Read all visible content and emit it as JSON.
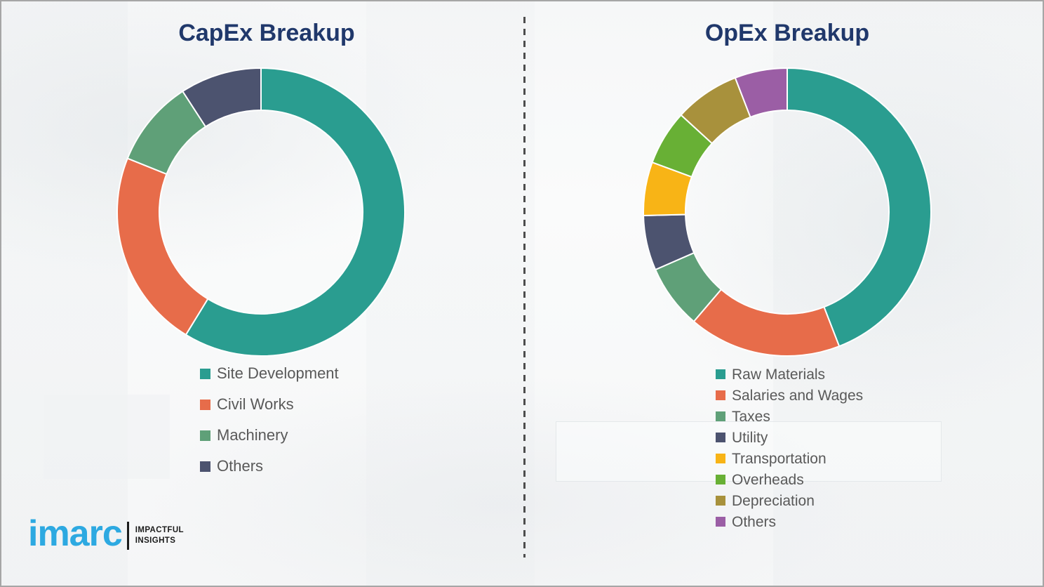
{
  "page": {
    "background_color": "#f7f8f9",
    "frame_border_color": "#a6a6a6",
    "divider_color": "#4d4d4d"
  },
  "charts_shared": {
    "title_color": "#20386b",
    "legend_text_color": "#595959",
    "segment_gap_color": "#ffffff",
    "donut_hole_ratio": 0.7
  },
  "chart_data": [
    {
      "type": "donut",
      "title": "CapEx Breakup",
      "categories": [
        "Site Development",
        "Civil Works",
        "Machinery",
        "Others"
      ],
      "values_percent": [
        59,
        22,
        10,
        9
      ],
      "arc_degrees": [
        211.5,
        80.4,
        35.1,
        33.0
      ],
      "colors": [
        "#2a9d90",
        "#e76c4a",
        "#5fa078",
        "#4c536f"
      ],
      "start_angle_deg": 0,
      "direction": "clockwise",
      "legend_position": "bottom-left",
      "data_labels": "none"
    },
    {
      "type": "donut",
      "title": "OpEx Breakup",
      "categories": [
        "Raw Materials",
        "Salaries and Wages",
        "Taxes",
        "Utility",
        "Transportation",
        "Overheads",
        "Depreciation",
        "Others"
      ],
      "values_percent": [
        44,
        17,
        7,
        6,
        6,
        6,
        7,
        6
      ],
      "arc_degrees": [
        158.8,
        61.7,
        25.9,
        22.2,
        21.6,
        22.2,
        26.4,
        21.2
      ],
      "colors": [
        "#2a9d90",
        "#e76c4a",
        "#5fa078",
        "#4c536f",
        "#f8b416",
        "#68b035",
        "#a8913c",
        "#9b5ea5"
      ],
      "start_angle_deg": 0,
      "direction": "clockwise",
      "legend_position": "bottom-left",
      "data_labels": "none"
    }
  ],
  "logo": {
    "brand": "imarc",
    "tagline_line1": "IMPACTFUL",
    "tagline_line2": "INSIGHTS",
    "brand_color": "#2da9e1",
    "text_color": "#1b1b1b"
  }
}
